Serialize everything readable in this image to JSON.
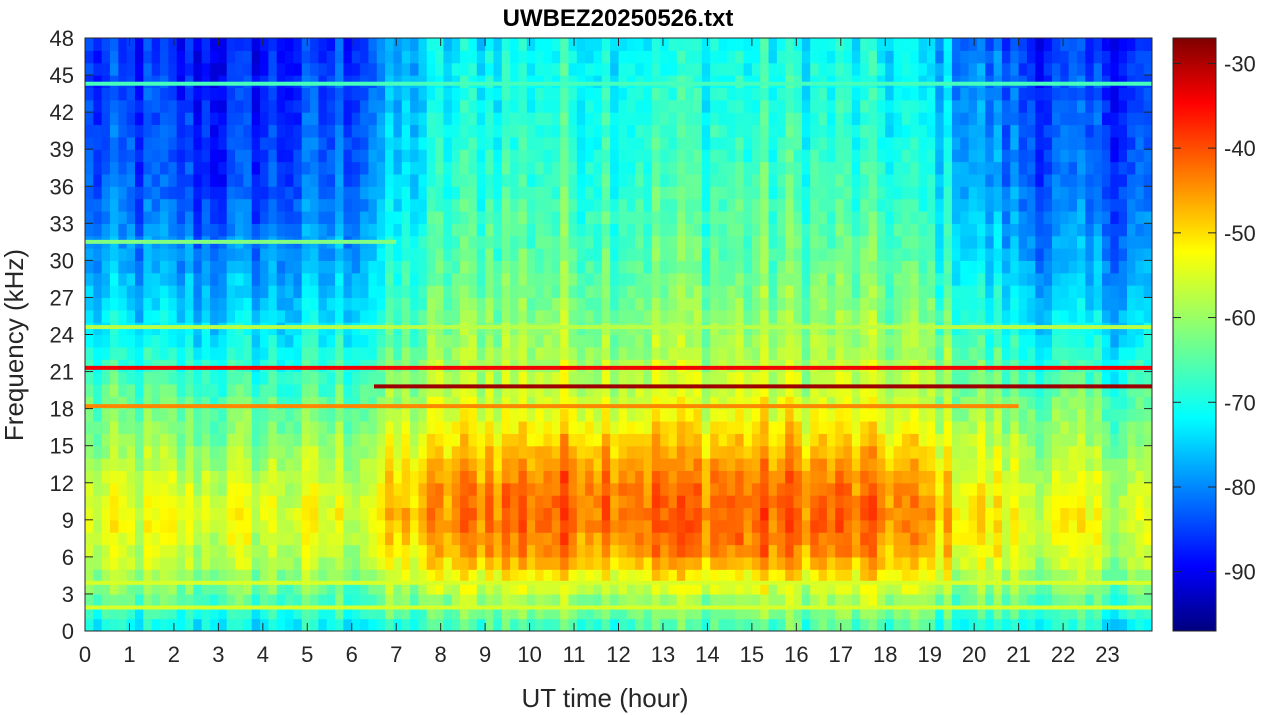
{
  "chart_data": {
    "type": "heatmap",
    "title": "UWBEZ20250526.txt",
    "xlabel": "UT time (hour)",
    "ylabel": "Frequency (kHz)",
    "xlim": [
      0,
      24
    ],
    "ylim": [
      0,
      48
    ],
    "x_ticks": [
      0,
      1,
      2,
      3,
      4,
      5,
      6,
      7,
      8,
      9,
      10,
      11,
      12,
      13,
      14,
      15,
      16,
      17,
      18,
      19,
      20,
      21,
      22,
      23
    ],
    "y_ticks": [
      0,
      3,
      6,
      9,
      12,
      15,
      18,
      21,
      24,
      27,
      30,
      33,
      36,
      39,
      42,
      45,
      48
    ],
    "colorbar": {
      "label": "",
      "range": [
        -97,
        -27
      ],
      "ticks": [
        -30,
        -40,
        -50,
        -60,
        -70,
        -80,
        -90
      ],
      "colormap": "jet"
    },
    "intensity_grid": {
      "description": "",
      "hours": [
        0,
        1,
        2,
        3,
        4,
        5,
        6,
        7,
        8,
        9,
        10,
        11,
        12,
        13,
        14,
        15,
        16,
        17,
        18,
        19,
        20,
        21,
        22,
        23,
        24
      ],
      "freq_khz": [
        0,
        3,
        6,
        9,
        12,
        15,
        18,
        24,
        30,
        36,
        42,
        48
      ],
      "values": [
        [
          -72,
          -72,
          -72,
          -72,
          -72,
          -72,
          -72,
          -70,
          -68,
          -66,
          -66,
          -66,
          -66,
          -66,
          -66,
          -66,
          -66,
          -66,
          -66,
          -68,
          -70,
          -70,
          -72,
          -72,
          -72
        ],
        [
          -64,
          -64,
          -64,
          -64,
          -64,
          -64,
          -64,
          -62,
          -60,
          -58,
          -58,
          -58,
          -58,
          -58,
          -58,
          -58,
          -58,
          -58,
          -58,
          -60,
          -62,
          -62,
          -64,
          -64,
          -64
        ],
        [
          -58,
          -58,
          -58,
          -58,
          -58,
          -58,
          -58,
          -54,
          -50,
          -47,
          -46,
          -46,
          -46,
          -46,
          -46,
          -46,
          -46,
          -47,
          -48,
          -50,
          -54,
          -56,
          -58,
          -58,
          -58
        ],
        [
          -56,
          -55,
          -55,
          -55,
          -55,
          -55,
          -55,
          -50,
          -46,
          -43,
          -42,
          -42,
          -42,
          -42,
          -42,
          -42,
          -42,
          -43,
          -44,
          -47,
          -52,
          -54,
          -55,
          -55,
          -56
        ],
        [
          -58,
          -57,
          -57,
          -57,
          -57,
          -57,
          -57,
          -52,
          -48,
          -45,
          -44,
          -43,
          -43,
          -44,
          -44,
          -44,
          -44,
          -45,
          -46,
          -49,
          -54,
          -56,
          -57,
          -57,
          -58
        ],
        [
          -62,
          -61,
          -61,
          -61,
          -61,
          -61,
          -60,
          -56,
          -52,
          -50,
          -49,
          -48,
          -48,
          -49,
          -49,
          -49,
          -49,
          -50,
          -51,
          -53,
          -57,
          -59,
          -60,
          -61,
          -62
        ],
        [
          -64,
          -64,
          -64,
          -64,
          -64,
          -64,
          -63,
          -60,
          -57,
          -56,
          -55,
          -55,
          -55,
          -55,
          -55,
          -55,
          -55,
          -56,
          -57,
          -58,
          -60,
          -62,
          -63,
          -64,
          -64
        ],
        [
          -72,
          -72,
          -72,
          -72,
          -72,
          -72,
          -70,
          -66,
          -62,
          -60,
          -60,
          -60,
          -60,
          -60,
          -60,
          -60,
          -60,
          -60,
          -61,
          -62,
          -66,
          -70,
          -72,
          -72,
          -72
        ],
        [
          -78,
          -78,
          -78,
          -78,
          -78,
          -78,
          -76,
          -70,
          -66,
          -64,
          -64,
          -64,
          -64,
          -64,
          -64,
          -64,
          -64,
          -64,
          -65,
          -66,
          -72,
          -76,
          -78,
          -78,
          -78
        ],
        [
          -82,
          -82,
          -84,
          -85,
          -84,
          -82,
          -80,
          -74,
          -69,
          -67,
          -66,
          -66,
          -66,
          -66,
          -66,
          -66,
          -66,
          -67,
          -68,
          -70,
          -76,
          -80,
          -82,
          -82,
          -82
        ],
        [
          -84,
          -84,
          -85,
          -86,
          -85,
          -84,
          -82,
          -76,
          -71,
          -69,
          -68,
          -68,
          -68,
          -68,
          -68,
          -68,
          -68,
          -69,
          -70,
          -72,
          -78,
          -82,
          -84,
          -84,
          -84
        ],
        [
          -86,
          -86,
          -87,
          -88,
          -87,
          -86,
          -84,
          -78,
          -73,
          -71,
          -70,
          -70,
          -70,
          -70,
          -70,
          -70,
          -70,
          -71,
          -72,
          -74,
          -80,
          -84,
          -86,
          -86,
          -86
        ]
      ]
    },
    "line_features": [
      {
        "freq_khz": 21.3,
        "from_hour": 0,
        "to_hour": 24,
        "level": -35
      },
      {
        "freq_khz": 19.8,
        "from_hour": 6.5,
        "to_hour": 24,
        "level": -29
      },
      {
        "freq_khz": 18.2,
        "from_hour": 0,
        "to_hour": 21,
        "level": -45
      },
      {
        "freq_khz": 24.6,
        "from_hour": 0,
        "to_hour": 24,
        "level": -58
      },
      {
        "freq_khz": 31.5,
        "from_hour": 0,
        "to_hour": 7,
        "level": -62
      },
      {
        "freq_khz": 44.3,
        "from_hour": 0,
        "to_hour": 24,
        "level": -66
      },
      {
        "freq_khz": 3.9,
        "from_hour": 0,
        "to_hour": 24,
        "level": -56
      },
      {
        "freq_khz": 1.9,
        "from_hour": 0,
        "to_hour": 24,
        "level": -56
      }
    ]
  }
}
